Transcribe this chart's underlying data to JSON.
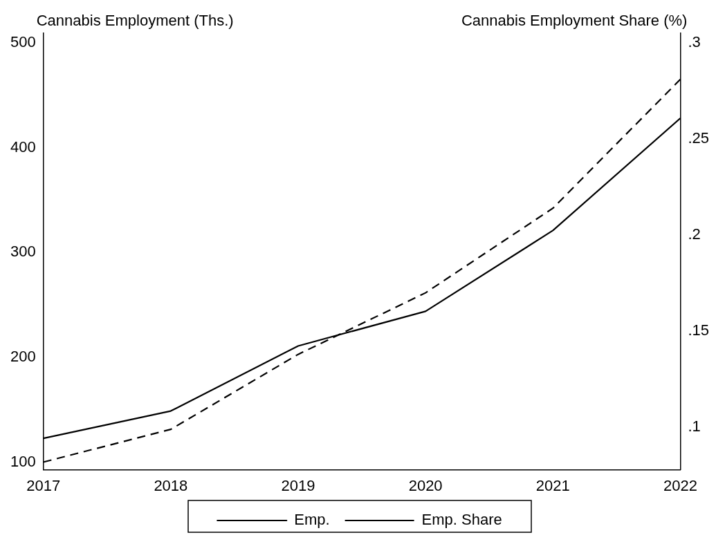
{
  "chart_data": {
    "type": "line",
    "xlabel": null,
    "ylabel": "Cannabis Employment (Ths.)",
    "y2label": "Cannabis Employment Share (%)",
    "x": [
      2017,
      2018,
      2019,
      2020,
      2021,
      2022
    ],
    "series": [
      {
        "name": "Emp.",
        "color": "#000000",
        "line_style": "solid",
        "values": [
          123,
          149,
          211,
          244,
          321,
          428
        ]
      },
      {
        "name": "Emp. Share",
        "color": "#000000",
        "line_style": "dashed",
        "axis": "y2",
        "values": [
          0.082,
          0.099,
          0.138,
          0.17,
          0.214,
          0.281
        ]
      }
    ],
    "xlim": [
      2017,
      2022
    ],
    "xticks": [
      2017,
      2018,
      2019,
      2020,
      2021,
      2022
    ],
    "ylim": [
      93,
      509
    ],
    "yticks": [
      100,
      200,
      300,
      400,
      500
    ],
    "y2lim": [
      0.078,
      0.305
    ],
    "y2ticks": [
      {
        "value": 0.1,
        "label": ".1"
      },
      {
        "value": 0.15,
        "label": ".15"
      },
      {
        "value": 0.2,
        "label": ".2"
      },
      {
        "value": 0.25,
        "label": ".25"
      },
      {
        "value": 0.3,
        "label": ".3"
      }
    ],
    "grid": false,
    "legend": "bottom",
    "marker": "none"
  }
}
